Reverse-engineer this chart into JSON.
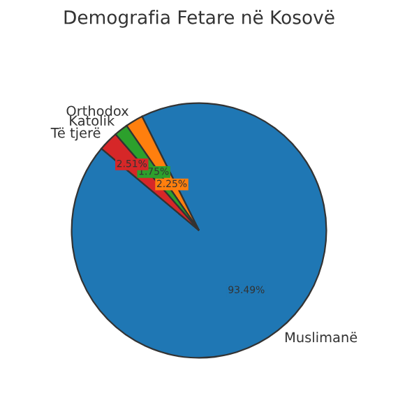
{
  "chart_data": {
    "type": "pie",
    "title": "Demografia Fetare në Kosovë",
    "categories": [
      "Muslimanë",
      "Orthodox",
      "Katolik",
      "Të tjerë"
    ],
    "values": [
      93.49,
      2.25,
      1.75,
      2.51
    ],
    "colors": [
      "#1f77b4",
      "#ff7f0e",
      "#2ca02c",
      "#d62728"
    ],
    "value_labels": [
      "93.49%",
      "2.25%",
      "1.75%",
      "2.51%"
    ]
  }
}
